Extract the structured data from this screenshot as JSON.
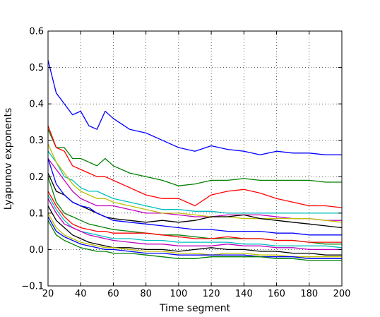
{
  "chart_data": {
    "type": "line",
    "title": "",
    "xlabel": "Time segment",
    "ylabel": "Lyapunov exponents",
    "xlim": [
      20,
      200
    ],
    "ylim": [
      -0.1,
      0.6
    ],
    "xticks": [
      20,
      40,
      60,
      80,
      100,
      120,
      140,
      160,
      180,
      200
    ],
    "xtick_labels": [
      "20",
      "40",
      "60",
      "80",
      "100",
      "120",
      "140",
      "160",
      "180",
      "200"
    ],
    "yticks": [
      -0.1,
      0.0,
      0.1,
      0.2,
      0.3,
      0.4,
      0.5,
      0.6
    ],
    "ytick_labels": [
      "−0.1",
      "0.0",
      "0.1",
      "0.2",
      "0.3",
      "0.4",
      "0.5",
      "0.6"
    ],
    "grid": true,
    "grid_style": "dotted",
    "legend": false,
    "x": [
      20,
      25,
      30,
      35,
      40,
      45,
      50,
      55,
      60,
      70,
      80,
      90,
      100,
      110,
      120,
      130,
      140,
      150,
      160,
      170,
      180,
      190,
      200
    ],
    "series": [
      {
        "color": "#0000ff",
        "values": [
          0.52,
          0.43,
          0.4,
          0.37,
          0.38,
          0.34,
          0.33,
          0.38,
          0.36,
          0.33,
          0.32,
          0.3,
          0.28,
          0.27,
          0.285,
          0.275,
          0.27,
          0.26,
          0.27,
          0.265,
          0.265,
          0.26,
          0.26
        ]
      },
      {
        "color": "#008000",
        "values": [
          0.33,
          0.28,
          0.28,
          0.25,
          0.25,
          0.24,
          0.23,
          0.25,
          0.23,
          0.21,
          0.2,
          0.19,
          0.175,
          0.18,
          0.19,
          0.19,
          0.195,
          0.19,
          0.19,
          0.19,
          0.19,
          0.185,
          0.185
        ]
      },
      {
        "color": "#ff0000",
        "values": [
          0.34,
          0.28,
          0.27,
          0.23,
          0.22,
          0.21,
          0.2,
          0.2,
          0.19,
          0.17,
          0.15,
          0.14,
          0.14,
          0.12,
          0.15,
          0.16,
          0.165,
          0.155,
          0.14,
          0.13,
          0.12,
          0.12,
          0.115
        ]
      },
      {
        "color": "#00bfbf",
        "values": [
          0.27,
          0.24,
          0.2,
          0.19,
          0.17,
          0.16,
          0.16,
          0.15,
          0.14,
          0.13,
          0.12,
          0.11,
          0.11,
          0.105,
          0.105,
          0.1,
          0.1,
          0.1,
          0.1,
          0.1,
          0.1,
          0.1,
          0.1
        ]
      },
      {
        "color": "#bf00bf",
        "values": [
          0.25,
          0.22,
          0.19,
          0.16,
          0.14,
          0.13,
          0.12,
          0.12,
          0.12,
          0.11,
          0.1,
          0.1,
          0.095,
          0.09,
          0.09,
          0.095,
          0.095,
          0.095,
          0.09,
          0.085,
          0.085,
          0.08,
          0.08
        ]
      },
      {
        "color": "#bfbf00",
        "values": [
          0.29,
          0.24,
          0.21,
          0.18,
          0.16,
          0.15,
          0.14,
          0.14,
          0.13,
          0.12,
          0.11,
          0.1,
          0.1,
          0.095,
          0.09,
          0.09,
          0.085,
          0.085,
          0.085,
          0.085,
          0.085,
          0.08,
          0.075
        ]
      },
      {
        "color": "#000000",
        "values": [
          0.21,
          0.16,
          0.15,
          0.13,
          0.12,
          0.11,
          0.1,
          0.09,
          0.085,
          0.08,
          0.075,
          0.08,
          0.075,
          0.08,
          0.09,
          0.09,
          0.095,
          0.085,
          0.08,
          0.075,
          0.07,
          0.065,
          0.06
        ]
      },
      {
        "color": "#0000ff",
        "values": [
          0.25,
          0.18,
          0.15,
          0.13,
          0.12,
          0.115,
          0.1,
          0.09,
          0.08,
          0.075,
          0.07,
          0.065,
          0.06,
          0.055,
          0.055,
          0.05,
          0.05,
          0.05,
          0.045,
          0.045,
          0.04,
          0.04,
          0.04
        ]
      },
      {
        "color": "#008000",
        "values": [
          0.2,
          0.13,
          0.1,
          0.09,
          0.08,
          0.07,
          0.065,
          0.06,
          0.055,
          0.05,
          0.045,
          0.04,
          0.04,
          0.035,
          0.03,
          0.03,
          0.03,
          0.03,
          0.025,
          0.025,
          0.02,
          0.015,
          0.015
        ]
      },
      {
        "color": "#ff0000",
        "values": [
          0.16,
          0.12,
          0.09,
          0.07,
          0.06,
          0.055,
          0.05,
          0.05,
          0.045,
          0.045,
          0.045,
          0.04,
          0.035,
          0.03,
          0.03,
          0.035,
          0.03,
          0.03,
          0.025,
          0.025,
          0.02,
          0.02,
          0.02
        ]
      },
      {
        "color": "#00bfbf",
        "values": [
          0.15,
          0.11,
          0.08,
          0.06,
          0.05,
          0.045,
          0.04,
          0.035,
          0.03,
          0.03,
          0.025,
          0.025,
          0.02,
          0.02,
          0.02,
          0.02,
          0.015,
          0.015,
          0.01,
          0.01,
          0.01,
          0.01,
          0.005
        ]
      },
      {
        "color": "#bf00bf",
        "values": [
          0.14,
          0.1,
          0.07,
          0.06,
          0.05,
          0.04,
          0.035,
          0.03,
          0.025,
          0.02,
          0.015,
          0.015,
          0.01,
          0.01,
          0.01,
          0.015,
          0.01,
          0.01,
          0.005,
          0.005,
          0.0,
          0.0,
          0.0
        ]
      },
      {
        "color": "#000000",
        "values": [
          0.12,
          0.08,
          0.06,
          0.04,
          0.03,
          0.02,
          0.015,
          0.01,
          0.005,
          0.005,
          0.0,
          0.0,
          -0.005,
          0.0,
          0.005,
          0.0,
          0.0,
          -0.005,
          -0.005,
          -0.01,
          -0.01,
          -0.015,
          -0.015
        ]
      },
      {
        "color": "#bfbf00",
        "values": [
          0.1,
          0.06,
          0.04,
          0.03,
          0.02,
          0.015,
          0.01,
          0.005,
          0.005,
          0.0,
          -0.005,
          -0.005,
          -0.01,
          -0.01,
          -0.015,
          -0.01,
          -0.01,
          -0.015,
          -0.015,
          -0.02,
          -0.02,
          -0.02,
          -0.02
        ]
      },
      {
        "color": "#0000ff",
        "values": [
          0.09,
          0.05,
          0.035,
          0.025,
          0.015,
          0.01,
          0.005,
          0.0,
          0.0,
          -0.005,
          -0.01,
          -0.01,
          -0.015,
          -0.015,
          -0.015,
          -0.015,
          -0.015,
          -0.02,
          -0.02,
          -0.02,
          -0.025,
          -0.025,
          -0.025
        ]
      },
      {
        "color": "#008000",
        "values": [
          0.08,
          0.04,
          0.025,
          0.015,
          0.005,
          0.0,
          -0.005,
          -0.005,
          -0.01,
          -0.01,
          -0.015,
          -0.02,
          -0.025,
          -0.025,
          -0.02,
          -0.02,
          -0.02,
          -0.02,
          -0.025,
          -0.025,
          -0.03,
          -0.03,
          -0.03
        ]
      }
    ]
  }
}
